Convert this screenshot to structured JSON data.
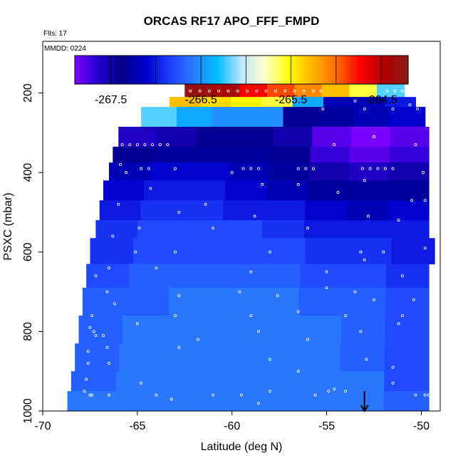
{
  "chart_data": {
    "type": "heatmap",
    "title": "ORCAS RF17 APO_FFF_FMPD",
    "flights_label": "Flts: 17",
    "date_label": "MMDD: 0224",
    "xlabel": "Latitude (deg N)",
    "ylabel": "PSXC (mbar)",
    "xlim": [
      -70,
      -49
    ],
    "ylim": [
      1000,
      70
    ],
    "x_ticks": [
      -70,
      -65,
      -60,
      -55,
      -50
    ],
    "y_ticks": [
      200,
      400,
      600,
      800,
      1000
    ],
    "colorbar": {
      "range": [
        -267.9,
        -264.2
      ],
      "ticks": [
        -267.5,
        -266.5,
        -265.5,
        -264.5
      ],
      "colors": [
        "#7b00ff",
        "#2200cc",
        "#00008b",
        "#0000cd",
        "#1e40ff",
        "#2a7cff",
        "#00bfff",
        "#bfe7ff",
        "#ffffcc",
        "#ffff00",
        "#ffb300",
        "#ff6a00",
        "#ff0000",
        "#b00000",
        "#8b1a1a"
      ]
    },
    "layers": [
      {
        "p": [
          175,
          210
        ],
        "lat": [
          -62.5,
          -50.9
        ],
        "values": [
          -264.3,
          -264.4,
          -264.7,
          -264.9,
          -265.1,
          -265.3,
          -265.6,
          -266.2
        ]
      },
      {
        "p": [
          210,
          235
        ],
        "lat": [
          -63.3,
          -50.3
        ],
        "values": [
          -265.3,
          -265.4,
          -265.5,
          -265.6,
          -266.4,
          -267.2,
          -267.2,
          -267.0
        ]
      },
      {
        "p": [
          235,
          285
        ],
        "lat": [
          -64.8,
          -49.8
        ],
        "values": [
          -266.2,
          -266.4,
          -266.5,
          -266.5,
          -267.4,
          -267.3,
          -267.2,
          -267.1
        ]
      },
      {
        "p": [
          285,
          335
        ],
        "lat": [
          -66.0,
          -49.6
        ],
        "values": [
          -267.6,
          -267.5,
          -267.4,
          -267.4,
          -267.5,
          -267.8,
          -267.9,
          -267.8
        ]
      },
      {
        "p": [
          335,
          375
        ],
        "lat": [
          -66.3,
          -49.6
        ],
        "values": [
          -267.4,
          -267.3,
          -267.3,
          -267.3,
          -267.4,
          -267.7,
          -267.8,
          -267.7
        ]
      },
      {
        "p": [
          375,
          420
        ],
        "lat": [
          -66.5,
          -49.6
        ],
        "values": [
          -267.2,
          -267.1,
          -267.1,
          -267.2,
          -267.3,
          -267.5,
          -267.6,
          -267.5
        ]
      },
      {
        "p": [
          420,
          470
        ],
        "lat": [
          -66.8,
          -49.6
        ],
        "values": [
          -267.1,
          -267.0,
          -267.0,
          -267.1,
          -267.2,
          -267.3,
          -267.3,
          -267.3
        ]
      },
      {
        "p": [
          470,
          520
        ],
        "lat": [
          -67.0,
          -49.6
        ],
        "values": [
          -267.0,
          -266.9,
          -266.9,
          -267.0,
          -267.0,
          -267.1,
          -267.2,
          -267.1
        ]
      },
      {
        "p": [
          520,
          565
        ],
        "lat": [
          -67.2,
          -49.6
        ],
        "values": [
          -266.9,
          -266.8,
          -266.8,
          -266.8,
          -266.9,
          -267.0,
          -267.0,
          -267.0
        ]
      },
      {
        "p": [
          565,
          630
        ],
        "lat": [
          -67.5,
          -49.3
        ],
        "values": [
          -266.9,
          -266.8,
          -266.8,
          -266.8,
          -266.8,
          -266.9,
          -266.9,
          -267.0
        ]
      },
      {
        "p": [
          630,
          690
        ],
        "lat": [
          -67.7,
          -49.6
        ],
        "values": [
          -266.8,
          -266.7,
          -266.7,
          -266.7,
          -266.7,
          -266.8,
          -266.8,
          -266.9
        ]
      },
      {
        "p": [
          690,
          760
        ],
        "lat": [
          -67.9,
          -49.6
        ],
        "values": [
          -266.7,
          -266.7,
          -266.6,
          -266.6,
          -266.6,
          -266.7,
          -266.7,
          -266.8
        ]
      },
      {
        "p": [
          760,
          830
        ],
        "lat": [
          -68.1,
          -49.6
        ],
        "values": [
          -266.7,
          -266.6,
          -266.6,
          -266.6,
          -266.6,
          -266.6,
          -266.7,
          -266.8
        ]
      },
      {
        "p": [
          830,
          900
        ],
        "lat": [
          -68.3,
          -49.6
        ],
        "values": [
          -266.7,
          -266.6,
          -266.6,
          -266.6,
          -266.6,
          -266.6,
          -266.7,
          -266.8
        ]
      },
      {
        "p": [
          900,
          950
        ],
        "lat": [
          -68.5,
          -49.6
        ],
        "values": [
          -266.7,
          -266.6,
          -266.6,
          -266.6,
          -266.6,
          -266.6,
          -266.6,
          -266.8
        ]
      },
      {
        "p": [
          950,
          1000
        ],
        "lat": [
          -68.7,
          -49.6
        ],
        "values": [
          -266.6,
          -266.6,
          -266.6,
          -266.6,
          -266.6,
          -266.6,
          -266.6,
          -266.7
        ]
      }
    ],
    "sample_points": [
      [
        -62.2,
        195
      ],
      [
        -61.7,
        195
      ],
      [
        -61.2,
        195
      ],
      [
        -60.7,
        195
      ],
      [
        -60.2,
        195
      ],
      [
        -59.7,
        195
      ],
      [
        -59.2,
        195
      ],
      [
        -58.7,
        195
      ],
      [
        -58.2,
        195
      ],
      [
        -57.7,
        195
      ],
      [
        -57.2,
        195
      ],
      [
        -56.7,
        195
      ],
      [
        -56.2,
        195
      ],
      [
        -55.7,
        195
      ],
      [
        -55.3,
        195
      ],
      [
        -51.8,
        195
      ],
      [
        -51.4,
        195
      ],
      [
        -51.0,
        195
      ],
      [
        -55.2,
        240
      ],
      [
        -53.0,
        240
      ],
      [
        -51.5,
        240
      ],
      [
        -50.2,
        240
      ],
      [
        -53.5,
        220
      ],
      [
        -50.6,
        230
      ],
      [
        -65.8,
        330
      ],
      [
        -65.4,
        330
      ],
      [
        -65.0,
        330
      ],
      [
        -64.6,
        330
      ],
      [
        -64.2,
        330
      ],
      [
        -63.8,
        330
      ],
      [
        -63.4,
        330
      ],
      [
        -54.6,
        330
      ],
      [
        -50.3,
        330
      ],
      [
        -52.5,
        310
      ],
      [
        -65.9,
        380
      ],
      [
        -65.6,
        400
      ],
      [
        -64.8,
        390
      ],
      [
        -64.4,
        390
      ],
      [
        -63.0,
        390
      ],
      [
        -59.4,
        390
      ],
      [
        -59.0,
        390
      ],
      [
        -58.6,
        390
      ],
      [
        -56.5,
        390
      ],
      [
        -56.1,
        390
      ],
      [
        -55.7,
        390
      ],
      [
        -53.1,
        390
      ],
      [
        -52.7,
        390
      ],
      [
        -52.3,
        390
      ],
      [
        -51.9,
        390
      ],
      [
        -51.5,
        390
      ],
      [
        -60.0,
        400
      ],
      [
        -49.9,
        400
      ],
      [
        -64.3,
        440
      ],
      [
        -58.4,
        430
      ],
      [
        -56.5,
        430
      ],
      [
        -54.4,
        450
      ],
      [
        -53.0,
        420
      ],
      [
        -61.4,
        480
      ],
      [
        -50.5,
        470
      ],
      [
        -49.8,
        470
      ],
      [
        -66.0,
        480
      ],
      [
        -62.8,
        500
      ],
      [
        -58.8,
        510
      ],
      [
        -52.8,
        510
      ],
      [
        -51.2,
        520
      ],
      [
        -64.9,
        540
      ],
      [
        -56.0,
        540
      ],
      [
        -61.0,
        540
      ],
      [
        -66.3,
        560
      ],
      [
        -65.1,
        600
      ],
      [
        -63.0,
        600
      ],
      [
        -58.0,
        600
      ],
      [
        -53.2,
        600
      ],
      [
        -52.0,
        600
      ],
      [
        -49.8,
        590
      ],
      [
        -53.0,
        620
      ],
      [
        -64.0,
        640
      ],
      [
        -59.0,
        650
      ],
      [
        -55.0,
        650
      ],
      [
        -51.0,
        660
      ],
      [
        -66.5,
        640
      ],
      [
        -67.2,
        660
      ],
      [
        -66.6,
        700
      ],
      [
        -62.8,
        710
      ],
      [
        -59.6,
        700
      ],
      [
        -57.6,
        710
      ],
      [
        -55.0,
        690
      ],
      [
        -53.5,
        700
      ],
      [
        -52.5,
        720
      ],
      [
        -50.4,
        720
      ],
      [
        -67.4,
        760
      ],
      [
        -66.2,
        730
      ],
      [
        -63.0,
        760
      ],
      [
        -59.0,
        760
      ],
      [
        -56.5,
        750
      ],
      [
        -54.0,
        760
      ],
      [
        -51.0,
        760
      ],
      [
        -67.5,
        790
      ],
      [
        -67.3,
        800
      ],
      [
        -67.2,
        810
      ],
      [
        -66.8,
        810
      ],
      [
        -66.6,
        840
      ],
      [
        -65.0,
        780
      ],
      [
        -61.8,
        820
      ],
      [
        -58.6,
        800
      ],
      [
        -56.0,
        820
      ],
      [
        -53.2,
        800
      ],
      [
        -51.2,
        780
      ],
      [
        -67.6,
        850
      ],
      [
        -67.6,
        880
      ],
      [
        -66.5,
        880
      ],
      [
        -62.8,
        840
      ],
      [
        -58.0,
        870
      ],
      [
        -56.5,
        900
      ],
      [
        -52.9,
        870
      ],
      [
        -51.5,
        890
      ],
      [
        -67.7,
        920
      ],
      [
        -67.4,
        960
      ],
      [
        -66.5,
        960
      ],
      [
        -64.8,
        930
      ],
      [
        -64.0,
        960
      ],
      [
        -61.0,
        960
      ],
      [
        -58.0,
        950
      ],
      [
        -55.6,
        960
      ],
      [
        -54.0,
        950
      ],
      [
        -51.5,
        930
      ],
      [
        -49.8,
        960
      ],
      [
        -50.3,
        960
      ],
      [
        -49.6,
        960
      ],
      [
        -67.5,
        960
      ],
      [
        -67.8,
        950
      ],
      [
        -63.2,
        970
      ],
      [
        -59.5,
        960
      ],
      [
        -58.6,
        980
      ],
      [
        -54.9,
        950
      ],
      [
        -54.6,
        945
      ]
    ],
    "annotation": {
      "type": "down-arrow",
      "lat": -53.0,
      "p_start": 950,
      "p_end": 1000
    }
  }
}
